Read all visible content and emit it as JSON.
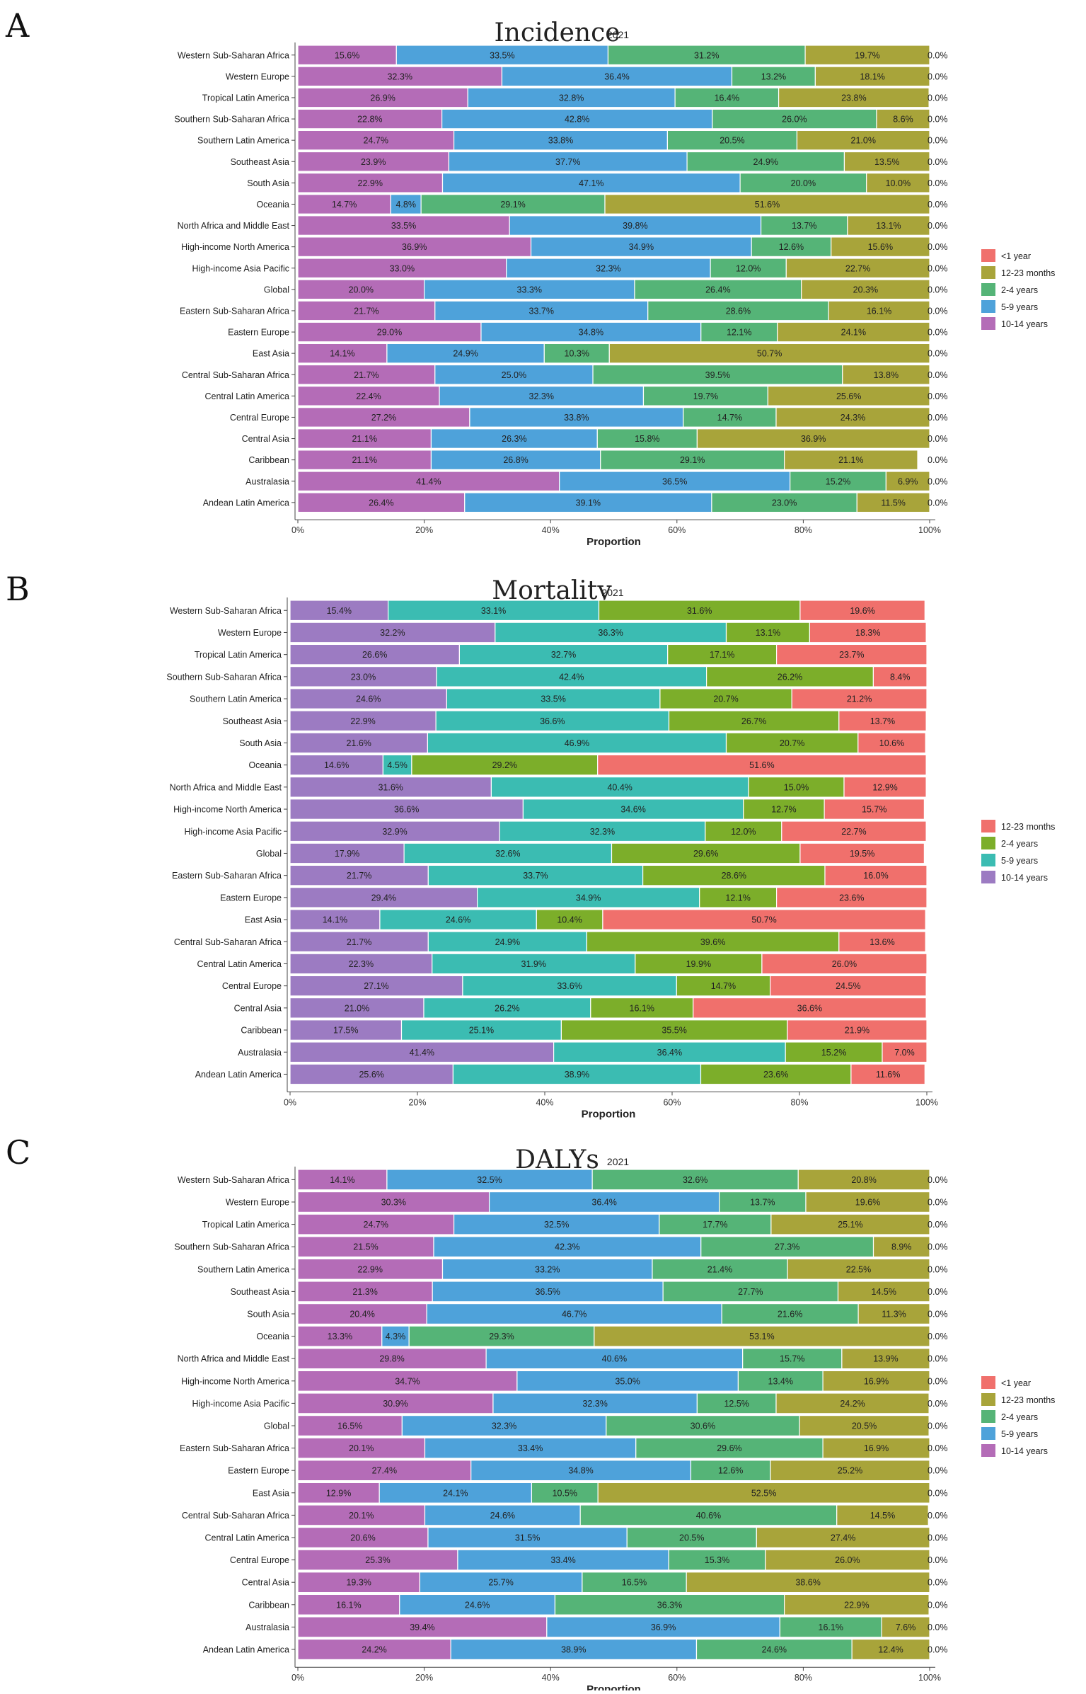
{
  "chart_data": [
    {
      "panel": "A",
      "type": "bar",
      "orientation": "horizontal-stacked-100",
      "title": "Incidence",
      "subtitle": "2021",
      "xlabel": "Proportion",
      "ylabel": "",
      "xlim": [
        0,
        100
      ],
      "xticks": [
        "0%",
        "20%",
        "40%",
        "60%",
        "80%",
        "100%"
      ],
      "legend": "right",
      "legend_entries": [
        {
          "name": "<1 year",
          "color": "#F0706C"
        },
        {
          "name": "12-23 months",
          "color": "#A8A43A"
        },
        {
          "name": "2-4 years",
          "color": "#55B477"
        },
        {
          "name": "5-9 years",
          "color": "#4EA2DA"
        },
        {
          "name": "10-14 years",
          "color": "#B46CB7"
        }
      ],
      "categories": [
        "Western Sub-Saharan Africa",
        "Western Europe",
        "Tropical Latin America",
        "Southern Sub-Saharan Africa",
        "Southern Latin America",
        "Southeast Asia",
        "South Asia",
        "Oceania",
        "North Africa and Middle East",
        "High-income North America",
        "High-income Asia Pacific",
        "Global",
        "Eastern Sub-Saharan Africa",
        "Eastern Europe",
        "East Asia",
        "Central Sub-Saharan Africa",
        "Central Latin America",
        "Central Europe",
        "Central Asia",
        "Caribbean",
        "Australasia",
        "Andean Latin America"
      ],
      "series": [
        {
          "name": "10-14 years",
          "color": "#B46CB7",
          "labels": [
            "15.6%",
            "32.3%",
            "26.9%",
            "22.8%",
            "24.7%",
            "23.9%",
            "22.9%",
            "14.7%",
            "33.5%",
            "36.9%",
            "33.0%",
            "20.0%",
            "21.7%",
            "29.0%",
            "14.1%",
            "21.7%",
            "22.4%",
            "27.2%",
            "21.1%",
            "21.1%",
            "41.4%",
            "26.4%"
          ]
        },
        {
          "name": "5-9 years",
          "color": "#4EA2DA",
          "labels": [
            "33.5%",
            "36.4%",
            "32.8%",
            "42.8%",
            "33.8%",
            "37.7%",
            "47.1%",
            "4.8%",
            "39.8%",
            "34.9%",
            "32.3%",
            "33.3%",
            "33.7%",
            "34.8%",
            "24.9%",
            "25.0%",
            "32.3%",
            "33.8%",
            "26.3%",
            "26.8%",
            "36.5%",
            "39.1%"
          ]
        },
        {
          "name": "2-4 years",
          "color": "#55B477",
          "labels": [
            "31.2%",
            "13.2%",
            "16.4%",
            "26.0%",
            "20.5%",
            "24.9%",
            "20.0%",
            "29.1%",
            "13.7%",
            "12.6%",
            "12.0%",
            "26.4%",
            "28.6%",
            "12.1%",
            "10.3%",
            "39.5%",
            "19.7%",
            "14.7%",
            "15.8%",
            "29.1%",
            "15.2%",
            "23.0%"
          ]
        },
        {
          "name": "12-23 months",
          "color": "#A8A43A",
          "labels": [
            "19.7%",
            "18.1%",
            "23.8%",
            "8.6%",
            "21.0%",
            "13.5%",
            "10.0%",
            "51.6%",
            "13.1%",
            "15.6%",
            "22.7%",
            "20.3%",
            "16.1%",
            "24.1%",
            "50.7%",
            "13.8%",
            "25.6%",
            "24.3%",
            "36.9%",
            "21.1%",
            "6.9%",
            "11.5%"
          ]
        },
        {
          "name": "<1 year",
          "color": "#F0706C",
          "labels": [
            "0.0%",
            "0.0%",
            "0.0%",
            "0.0%",
            "0.0%",
            "0.0%",
            "0.0%",
            "0.0%",
            "0.0%",
            "0.0%",
            "0.0%",
            "0.0%",
            "0.0%",
            "0.0%",
            "0.0%",
            "0.0%",
            "0.0%",
            "0.0%",
            "0.0%",
            "0.0%",
            "0.0%",
            "0.0%"
          ]
        }
      ]
    },
    {
      "panel": "B",
      "type": "bar",
      "orientation": "horizontal-stacked-100",
      "title": "Mortality",
      "subtitle": "2021",
      "xlabel": "Proportion",
      "ylabel": "",
      "xlim": [
        0,
        100
      ],
      "xticks": [
        "0%",
        "20%",
        "40%",
        "60%",
        "80%",
        "100%"
      ],
      "legend": "right",
      "legend_entries": [
        {
          "name": "12-23 months",
          "color": "#F0706C"
        },
        {
          "name": "2-4 years",
          "color": "#7CAE2A"
        },
        {
          "name": "5-9 years",
          "color": "#3BBCB2"
        },
        {
          "name": "10-14 years",
          "color": "#9C7BC2"
        }
      ],
      "categories": [
        "Western Sub-Saharan Africa",
        "Western Europe",
        "Tropical Latin America",
        "Southern Sub-Saharan Africa",
        "Southern Latin America",
        "Southeast Asia",
        "South Asia",
        "Oceania",
        "North Africa and Middle East",
        "High-income North America",
        "High-income Asia Pacific",
        "Global",
        "Eastern Sub-Saharan Africa",
        "Eastern Europe",
        "East Asia",
        "Central Sub-Saharan Africa",
        "Central Latin America",
        "Central Europe",
        "Central Asia",
        "Caribbean",
        "Australasia",
        "Andean Latin America"
      ],
      "series": [
        {
          "name": "10-14 years",
          "color": "#9C7BC2",
          "labels": [
            "15.4%",
            "32.2%",
            "26.6%",
            "23.0%",
            "24.6%",
            "22.9%",
            "21.6%",
            "14.6%",
            "31.6%",
            "36.6%",
            "32.9%",
            "17.9%",
            "21.7%",
            "29.4%",
            "14.1%",
            "21.7%",
            "22.3%",
            "27.1%",
            "21.0%",
            "17.5%",
            "41.4%",
            "25.6%"
          ]
        },
        {
          "name": "5-9 years",
          "color": "#3BBCB2",
          "labels": [
            "33.1%",
            "36.3%",
            "32.7%",
            "42.4%",
            "33.5%",
            "36.6%",
            "46.9%",
            "4.5%",
            "40.4%",
            "34.6%",
            "32.3%",
            "32.6%",
            "33.7%",
            "34.9%",
            "24.6%",
            "24.9%",
            "31.9%",
            "33.6%",
            "26.2%",
            "25.1%",
            "36.4%",
            "38.9%"
          ]
        },
        {
          "name": "2-4 years",
          "color": "#7CAE2A",
          "labels": [
            "31.6%",
            "13.1%",
            "17.1%",
            "26.2%",
            "20.7%",
            "26.7%",
            "20.7%",
            "29.2%",
            "15.0%",
            "12.7%",
            "12.0%",
            "29.6%",
            "28.6%",
            "12.1%",
            "10.4%",
            "39.6%",
            "19.9%",
            "14.7%",
            "16.1%",
            "35.5%",
            "15.2%",
            "23.6%"
          ]
        },
        {
          "name": "12-23 months",
          "color": "#F0706C",
          "labels": [
            "19.6%",
            "18.3%",
            "23.7%",
            "8.4%",
            "21.2%",
            "13.7%",
            "10.6%",
            "51.6%",
            "12.9%",
            "15.7%",
            "22.7%",
            "19.5%",
            "16.0%",
            "23.6%",
            "50.7%",
            "13.6%",
            "26.0%",
            "24.5%",
            "36.6%",
            "21.9%",
            "7.0%",
            "11.6%"
          ]
        }
      ]
    },
    {
      "panel": "C",
      "type": "bar",
      "orientation": "horizontal-stacked-100",
      "title": "DALYs",
      "subtitle": "2021",
      "xlabel": "Proportion",
      "ylabel": "",
      "xlim": [
        0,
        100
      ],
      "xticks": [
        "0%",
        "20%",
        "40%",
        "60%",
        "80%",
        "100%"
      ],
      "legend": "right",
      "legend_entries": [
        {
          "name": "<1 year",
          "color": "#F0706C"
        },
        {
          "name": "12-23 months",
          "color": "#A8A43A"
        },
        {
          "name": "2-4 years",
          "color": "#55B477"
        },
        {
          "name": "5-9 years",
          "color": "#4EA2DA"
        },
        {
          "name": "10-14 years",
          "color": "#B46CB7"
        }
      ],
      "categories": [
        "Western Sub-Saharan Africa",
        "Western Europe",
        "Tropical Latin America",
        "Southern Sub-Saharan Africa",
        "Southern Latin America",
        "Southeast Asia",
        "South Asia",
        "Oceania",
        "North Africa and Middle East",
        "High-income North America",
        "High-income Asia Pacific",
        "Global",
        "Eastern Sub-Saharan Africa",
        "Eastern Europe",
        "East Asia",
        "Central Sub-Saharan Africa",
        "Central Latin America",
        "Central Europe",
        "Central Asia",
        "Caribbean",
        "Australasia",
        "Andean Latin America"
      ],
      "series": [
        {
          "name": "10-14 years",
          "color": "#B46CB7",
          "labels": [
            "14.1%",
            "30.3%",
            "24.7%",
            "21.5%",
            "22.9%",
            "21.3%",
            "20.4%",
            "13.3%",
            "29.8%",
            "34.7%",
            "30.9%",
            "16.5%",
            "20.1%",
            "27.4%",
            "12.9%",
            "20.1%",
            "20.6%",
            "25.3%",
            "19.3%",
            "16.1%",
            "39.4%",
            "24.2%"
          ]
        },
        {
          "name": "5-9 years",
          "color": "#4EA2DA",
          "labels": [
            "32.5%",
            "36.4%",
            "32.5%",
            "42.3%",
            "33.2%",
            "36.5%",
            "46.7%",
            "4.3%",
            "40.6%",
            "35.0%",
            "32.3%",
            "32.3%",
            "33.4%",
            "34.8%",
            "24.1%",
            "24.6%",
            "31.5%",
            "33.4%",
            "25.7%",
            "24.6%",
            "36.9%",
            "38.9%"
          ]
        },
        {
          "name": "2-4 years",
          "color": "#55B477",
          "labels": [
            "32.6%",
            "13.7%",
            "17.7%",
            "27.3%",
            "21.4%",
            "27.7%",
            "21.6%",
            "29.3%",
            "15.7%",
            "13.4%",
            "12.5%",
            "30.6%",
            "29.6%",
            "12.6%",
            "10.5%",
            "40.6%",
            "20.5%",
            "15.3%",
            "16.5%",
            "36.3%",
            "16.1%",
            "24.6%"
          ]
        },
        {
          "name": "12-23 months",
          "color": "#A8A43A",
          "labels": [
            "20.8%",
            "19.6%",
            "25.1%",
            "8.9%",
            "22.5%",
            "14.5%",
            "11.3%",
            "53.1%",
            "13.9%",
            "16.9%",
            "24.2%",
            "20.5%",
            "16.9%",
            "25.2%",
            "52.5%",
            "14.5%",
            "27.4%",
            "26.0%",
            "38.6%",
            "22.9%",
            "7.6%",
            "12.4%"
          ]
        },
        {
          "name": "<1 year",
          "color": "#F0706C",
          "labels": [
            "0.0%",
            "0.0%",
            "0.0%",
            "0.0%",
            "0.0%",
            "0.0%",
            "0.0%",
            "0.0%",
            "0.0%",
            "0.0%",
            "0.0%",
            "0.0%",
            "0.0%",
            "0.0%",
            "0.0%",
            "0.0%",
            "0.0%",
            "0.0%",
            "0.0%",
            "0.0%",
            "0.0%",
            "0.0%"
          ]
        }
      ]
    }
  ]
}
